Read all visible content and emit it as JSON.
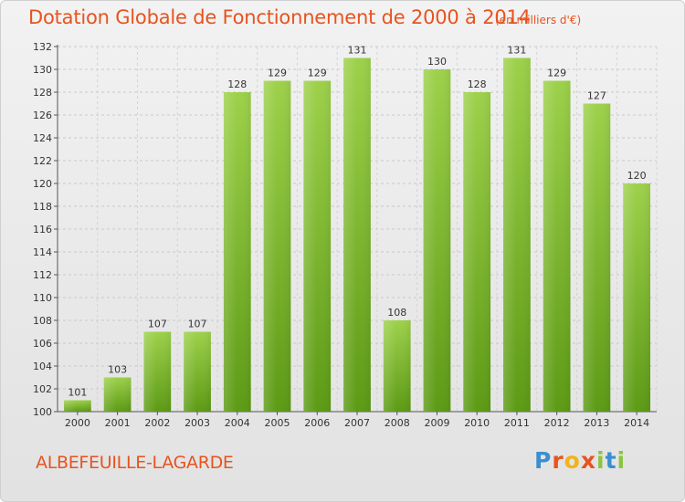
{
  "header": {
    "title": "Dotation Globale de Fonctionnement de 2000 à 2014",
    "unit_note": "(en milliers d'€)"
  },
  "footer": {
    "commune": "ALBEFEUILLE-LAGARDE",
    "logo_letters": [
      "P",
      "r",
      "o",
      "x",
      "i",
      "t",
      "i"
    ],
    "logo_colors": [
      "#3a8fd1",
      "#e8531f",
      "#f2b21a",
      "#e8531f",
      "#8bc540",
      "#3a8fd1",
      "#8bc540"
    ]
  },
  "colors": {
    "accent": "#e8531f",
    "bar_top": "#9dd14a",
    "bar_bottom": "#5c9a14"
  },
  "chart_data": {
    "type": "bar",
    "title": "Dotation Globale de Fonctionnement de 2000 à 2014",
    "subtitle": "(en milliers d'€)",
    "xlabel": "",
    "ylabel": "",
    "categories": [
      "2000",
      "2001",
      "2002",
      "2003",
      "2004",
      "2005",
      "2006",
      "2007",
      "2008",
      "2009",
      "2010",
      "2011",
      "2012",
      "2013",
      "2014"
    ],
    "values": [
      101,
      103,
      107,
      107,
      128,
      129,
      129,
      131,
      108,
      130,
      128,
      131,
      129,
      127,
      120
    ],
    "data_labels": [
      "101",
      "103",
      "107",
      "107",
      "128",
      "129",
      "129",
      "131",
      "108",
      "130",
      "128",
      "131",
      "129",
      "127",
      "120"
    ],
    "ylim": [
      100,
      132
    ],
    "yticks": [
      100,
      102,
      104,
      106,
      108,
      110,
      112,
      114,
      116,
      118,
      120,
      122,
      124,
      126,
      128,
      130,
      132
    ],
    "grid": true,
    "legend": "none"
  }
}
